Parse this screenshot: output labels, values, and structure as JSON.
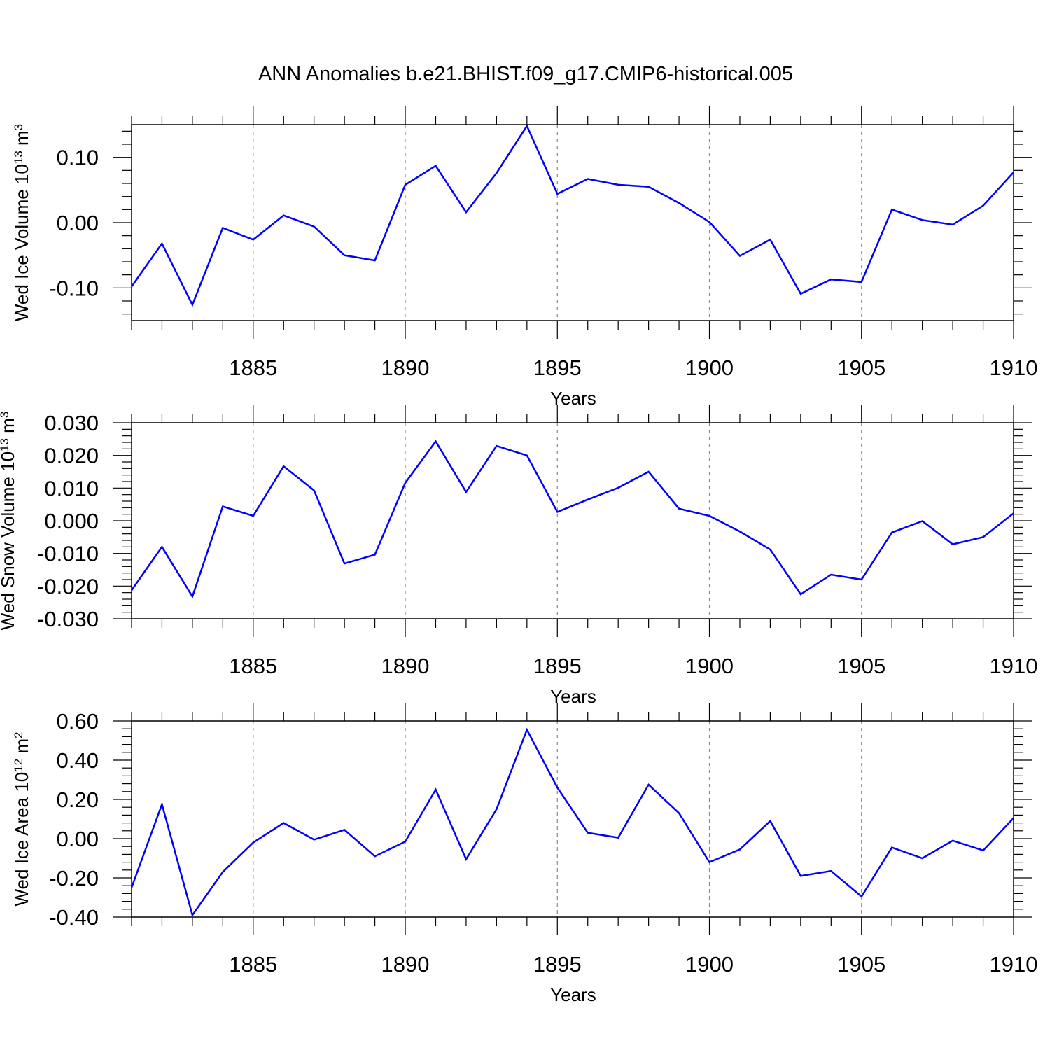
{
  "title": "ANN Anomalies b.e21.BHIST.f09_g17.CMIP6-historical.005",
  "series_color": "#0000ff",
  "chart_data": [
    {
      "type": "line",
      "title": "ANN Anomalies b.e21.BHIST.f09_g17.CMIP6-historical.005",
      "xlabel": "Years",
      "ylabel": {
        "main": "Wed Ice Volume 10",
        "sup1": "13",
        "unit": " m",
        "sup2": "3"
      },
      "xlim": [
        1881,
        1910
      ],
      "ylim": [
        -0.15,
        0.15
      ],
      "x_ticks": [
        1885,
        1890,
        1895,
        1900,
        1905,
        1910
      ],
      "x_tick_labels": [
        "1885",
        "1890",
        "1895",
        "1900",
        "1905",
        "1910"
      ],
      "y_ticks": [
        -0.1,
        0.0,
        0.1
      ],
      "y_tick_labels": [
        "-0.10",
        "0.00",
        "0.10"
      ],
      "grid": "vertical dashed at major x ticks",
      "x": [
        1881,
        1882,
        1883,
        1884,
        1885,
        1886,
        1887,
        1888,
        1889,
        1890,
        1891,
        1892,
        1893,
        1894,
        1895,
        1896,
        1897,
        1898,
        1899,
        1900,
        1901,
        1902,
        1903,
        1904,
        1905,
        1906,
        1907,
        1908,
        1909,
        1910
      ],
      "y": [
        -0.098,
        -0.032,
        -0.126,
        -0.008,
        -0.026,
        0.011,
        -0.006,
        -0.05,
        -0.058,
        0.058,
        0.087,
        0.016,
        0.076,
        0.148,
        0.044,
        0.067,
        0.058,
        0.055,
        0.03,
        0.001,
        -0.051,
        -0.026,
        -0.109,
        -0.087,
        -0.091,
        0.02,
        0.004,
        -0.003,
        0.026,
        0.077
      ]
    },
    {
      "type": "line",
      "xlabel": "Years",
      "ylabel": {
        "main": "Wed Snow Volume 10",
        "sup1": "13",
        "unit": " m",
        "sup2": "3"
      },
      "xlim": [
        1881,
        1910
      ],
      "ylim": [
        -0.03,
        0.03
      ],
      "x_ticks": [
        1885,
        1890,
        1895,
        1900,
        1905,
        1910
      ],
      "x_tick_labels": [
        "1885",
        "1890",
        "1895",
        "1900",
        "1905",
        "1910"
      ],
      "y_ticks": [
        -0.03,
        -0.02,
        -0.01,
        0.0,
        0.01,
        0.02,
        0.03
      ],
      "y_tick_labels": [
        "-0.030",
        "-0.020",
        "-0.010",
        "0.000",
        "0.010",
        "0.020",
        "0.030"
      ],
      "grid": "vertical dashed at major x ticks",
      "x": [
        1881,
        1882,
        1883,
        1884,
        1885,
        1886,
        1887,
        1888,
        1889,
        1890,
        1891,
        1892,
        1893,
        1894,
        1895,
        1896,
        1897,
        1898,
        1899,
        1900,
        1901,
        1902,
        1903,
        1904,
        1905,
        1906,
        1907,
        1908,
        1909,
        1910
      ],
      "y": [
        -0.0213,
        -0.008,
        -0.0232,
        0.0044,
        0.0015,
        0.0167,
        0.0093,
        -0.0131,
        -0.0104,
        0.0116,
        0.0243,
        0.0088,
        0.0229,
        0.02,
        0.0027,
        0.0065,
        0.0101,
        0.015,
        0.0037,
        0.0015,
        -0.0033,
        -0.0088,
        -0.0225,
        -0.0165,
        -0.018,
        -0.0036,
        -0.0001,
        -0.0072,
        -0.005,
        0.0023
      ]
    },
    {
      "type": "line",
      "xlabel": "Years",
      "ylabel": {
        "main": "Wed Ice Area 10",
        "sup1": "12",
        "unit": " m",
        "sup2": "2"
      },
      "xlim": [
        1881,
        1910
      ],
      "ylim": [
        -0.4,
        0.6
      ],
      "x_ticks": [
        1885,
        1890,
        1895,
        1900,
        1905,
        1910
      ],
      "x_tick_labels": [
        "1885",
        "1890",
        "1895",
        "1900",
        "1905",
        "1910"
      ],
      "y_ticks": [
        -0.4,
        -0.2,
        0.0,
        0.2,
        0.4,
        0.6
      ],
      "y_tick_labels": [
        "-0.40",
        "-0.20",
        "0.00",
        "0.20",
        "0.40",
        "0.60"
      ],
      "grid": "vertical dashed at major x ticks",
      "x": [
        1881,
        1882,
        1883,
        1884,
        1885,
        1886,
        1887,
        1888,
        1889,
        1890,
        1891,
        1892,
        1893,
        1894,
        1895,
        1896,
        1897,
        1898,
        1899,
        1900,
        1901,
        1902,
        1903,
        1904,
        1905,
        1906,
        1907,
        1908,
        1909,
        1910
      ],
      "y": [
        -0.25,
        0.175,
        -0.39,
        -0.17,
        -0.02,
        0.08,
        -0.005,
        0.045,
        -0.09,
        -0.015,
        0.25,
        -0.105,
        0.15,
        0.555,
        0.26,
        0.03,
        0.005,
        0.275,
        0.13,
        -0.12,
        -0.055,
        0.09,
        -0.19,
        -0.165,
        -0.295,
        -0.045,
        -0.1,
        -0.01,
        -0.06,
        0.105
      ]
    }
  ]
}
